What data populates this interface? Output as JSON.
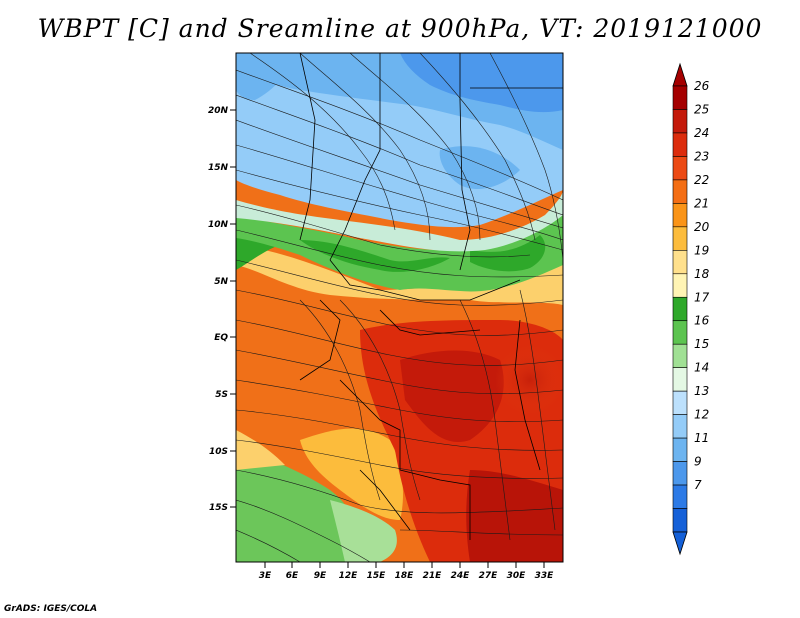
{
  "title": "WBPT [C] and Sreamline at 900hPa, VT: 2019121000",
  "credit": "GrADS: IGES/COLA",
  "map": {
    "latitude_labels": [
      "20N",
      "15N",
      "10N",
      "5N",
      "EQ",
      "5S",
      "10S",
      "15S"
    ],
    "longitude_labels": [
      "3E",
      "6E",
      "9E",
      "12E",
      "15E",
      "18E",
      "21E",
      "24E",
      "27E",
      "30E",
      "33E"
    ]
  },
  "colorbar": {
    "labels": [
      "26",
      "25",
      "24",
      "23",
      "22",
      "21",
      "20",
      "19",
      "18",
      "17",
      "16",
      "15",
      "14",
      "13",
      "12",
      "11",
      "9",
      "7"
    ],
    "colors": [
      "#a50000",
      "#c41a0a",
      "#dc2c0c",
      "#ec4a14",
      "#f46e14",
      "#fa9418",
      "#fcbc3c",
      "#ffe08c",
      "#fff4b4",
      "#2ea82a",
      "#5cc450",
      "#a0e094",
      "#e4f8e4",
      "#bce0fc",
      "#94ccf8",
      "#6cb4f0",
      "#4c98ec",
      "#2c7ae6",
      "#1460d8"
    ]
  }
}
